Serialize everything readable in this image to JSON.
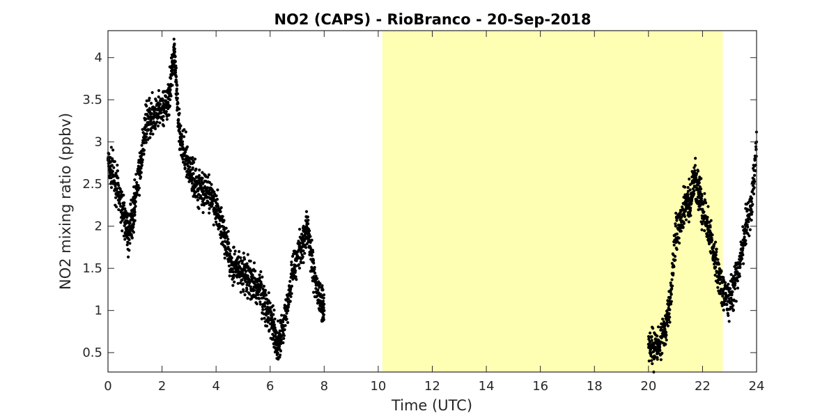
{
  "chart_data": {
    "type": "scatter",
    "title": "NO2 (CAPS) - RioBranco - 20-Sep-2018",
    "xlabel": "Time (UTC)",
    "ylabel": "NO2 mixing ratio (ppbv)",
    "xlim": [
      0,
      24
    ],
    "ylim": [
      0.27,
      4.32
    ],
    "x_ticks": [
      0,
      2,
      4,
      6,
      8,
      10,
      12,
      14,
      16,
      18,
      20,
      22,
      24
    ],
    "y_ticks": [
      0.5,
      1,
      1.5,
      2,
      2.5,
      3,
      3.5,
      4
    ],
    "x_tick_labels": [
      "0",
      "2",
      "4",
      "6",
      "8",
      "10",
      "12",
      "14",
      "16",
      "18",
      "20",
      "22",
      "24"
    ],
    "y_tick_labels": [
      "0.5",
      "1",
      "1.5",
      "2",
      "2.5",
      "3",
      "3.5",
      "4"
    ],
    "grid": false,
    "highlight_band": {
      "x_start": 10.15,
      "x_end": 22.75,
      "color": "#ffffb3"
    },
    "marker_color": "#000000",
    "series": [
      {
        "x": [
          0.0,
          0.2,
          0.4,
          0.6,
          0.75,
          0.9,
          1.0,
          1.2,
          1.4,
          1.6,
          1.8,
          2.0,
          2.2,
          2.35,
          2.45,
          2.55,
          2.7,
          2.9,
          3.1,
          3.3,
          3.5,
          3.7,
          3.9,
          4.1,
          4.3,
          4.5,
          4.7,
          4.9,
          5.1,
          5.3,
          5.5,
          5.7,
          5.9,
          6.1,
          6.25,
          6.4,
          6.6,
          6.8,
          7.0,
          7.2,
          7.35,
          7.5,
          7.7,
          7.9,
          8.0
        ],
        "y": [
          2.8,
          2.6,
          2.4,
          2.1,
          1.9,
          2.1,
          2.3,
          2.7,
          3.2,
          3.3,
          3.3,
          3.4,
          3.4,
          3.8,
          4.1,
          3.5,
          3.0,
          2.8,
          2.6,
          2.5,
          2.45,
          2.4,
          2.3,
          2.1,
          1.9,
          1.6,
          1.5,
          1.45,
          1.4,
          1.35,
          1.3,
          1.2,
          1.0,
          0.8,
          0.6,
          0.7,
          1.0,
          1.4,
          1.65,
          1.8,
          2.0,
          1.7,
          1.3,
          1.1,
          1.0
        ]
      },
      {
        "x": [
          20.0,
          20.2,
          20.4,
          20.6,
          20.8,
          21.0,
          21.2,
          21.4,
          21.55,
          21.7,
          21.85,
          22.0,
          22.2,
          22.4,
          22.6,
          22.8,
          23.0,
          23.2,
          23.4,
          23.6,
          23.8,
          24.0
        ],
        "y": [
          0.6,
          0.55,
          0.6,
          0.7,
          1.1,
          1.9,
          2.1,
          2.3,
          2.3,
          2.6,
          2.4,
          2.2,
          2.0,
          1.7,
          1.4,
          1.2,
          1.1,
          1.3,
          1.6,
          2.0,
          2.2,
          3.0
        ]
      }
    ]
  }
}
